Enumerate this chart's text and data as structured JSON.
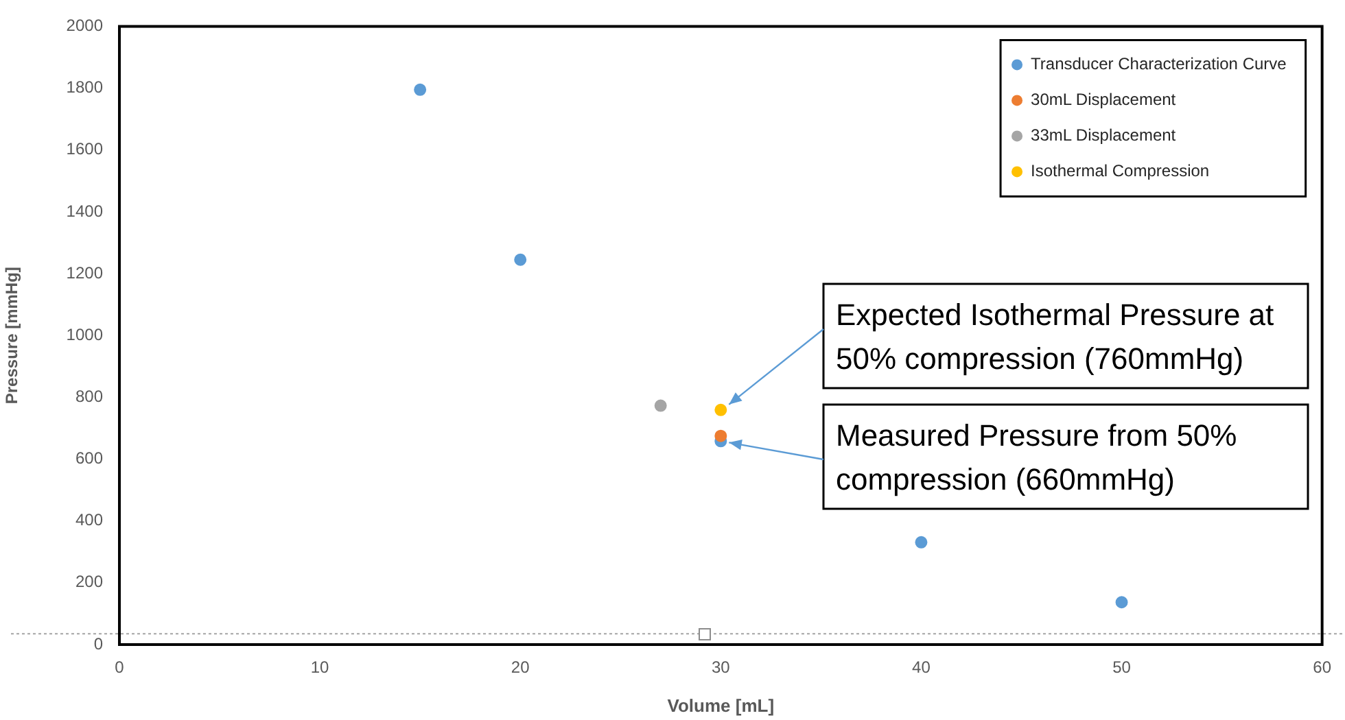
{
  "chart_data": {
    "type": "scatter",
    "xlabel": "Volume [mL]",
    "ylabel": "Pressure [mmHg]",
    "xlim": [
      0,
      60
    ],
    "xticks": [
      0,
      10,
      20,
      30,
      40,
      50,
      60
    ],
    "ylim": [
      0,
      2000
    ],
    "yticks": [
      0,
      200,
      400,
      600,
      800,
      1000,
      1200,
      1400,
      1600,
      1800,
      2000
    ],
    "grid": false,
    "legend": "top right",
    "marker": "circle",
    "series": [
      {
        "name": "Transducer Characterization Curve",
        "color": "#5b9bd5",
        "x": [
          15,
          20,
          30,
          40,
          50
        ],
        "values": [
          1795,
          1245,
          658,
          331,
          137
        ]
      },
      {
        "name": "30mL Displacement",
        "color": "#ed7d31",
        "x": [
          30
        ],
        "values": [
          675
        ]
      },
      {
        "name": "33mL Displacement",
        "color": "#a5a5a5",
        "x": [
          27
        ],
        "values": [
          773
        ]
      },
      {
        "name": "Isothermal Compression",
        "color": "#ffc000",
        "x": [
          30
        ],
        "values": [
          759
        ]
      }
    ],
    "ref_lines": [
      {
        "axis": "y",
        "value": 35,
        "color": "#a5a5a5",
        "line_style": "dotted"
      }
    ],
    "annotations": [
      {
        "text": "Expected Isothermal Pressure at 50% compression (760mmHg)",
        "x": 30,
        "y": 759
      },
      {
        "text": "Measured Pressure from 50% compression (660mmHg)",
        "x": 30,
        "y": 658
      }
    ]
  }
}
